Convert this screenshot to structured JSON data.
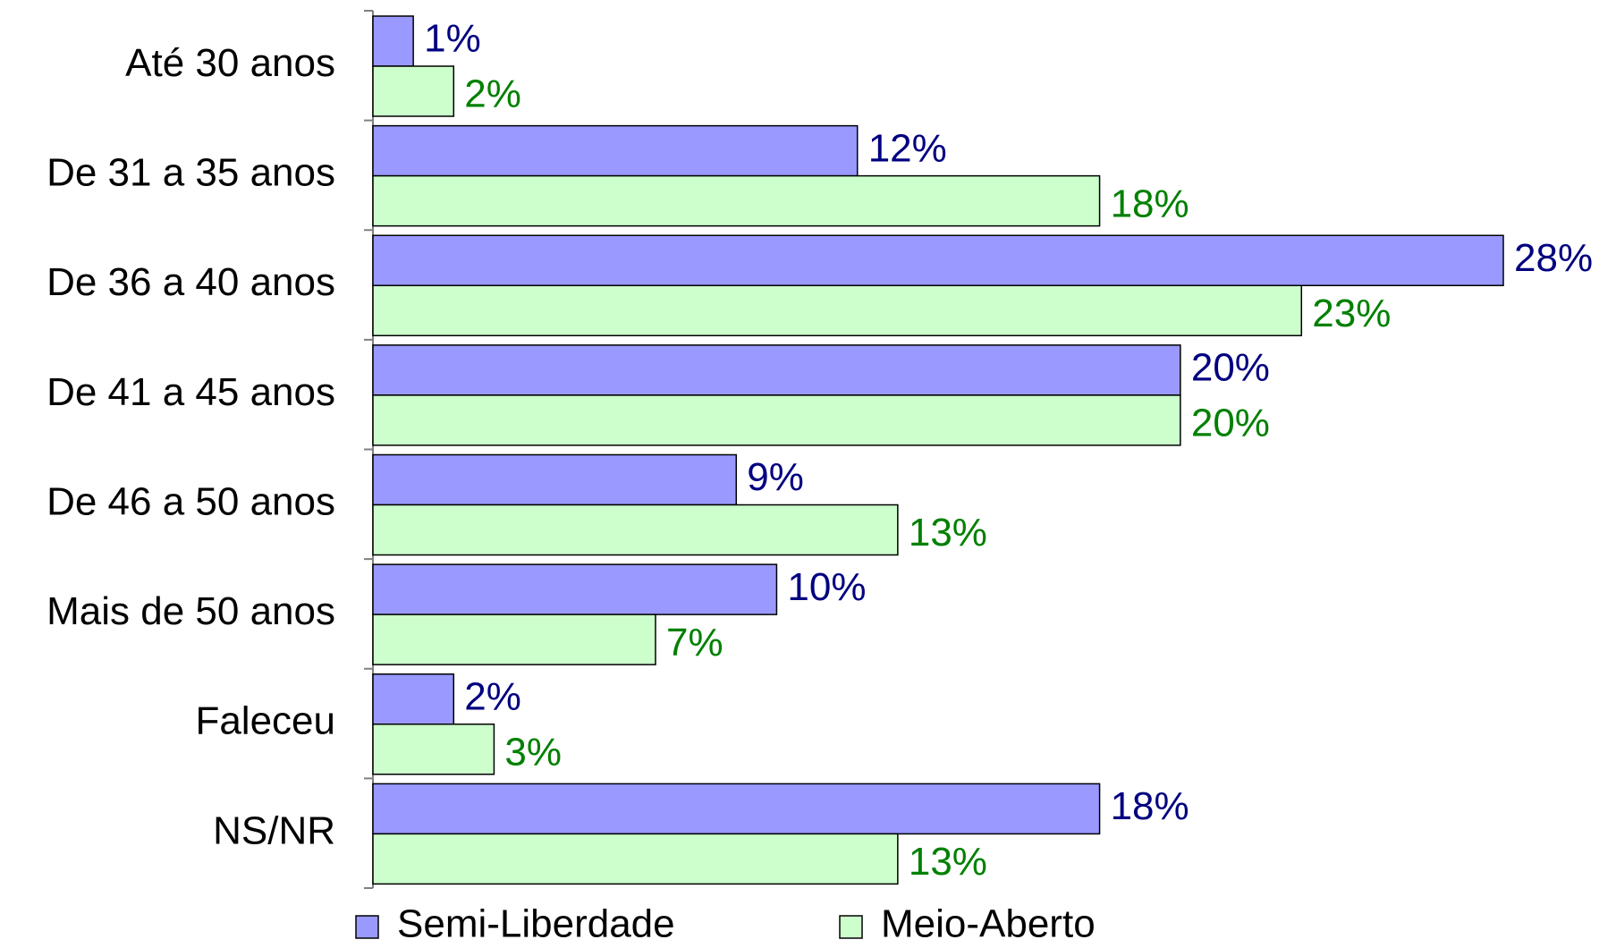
{
  "chart_data": {
    "type": "bar",
    "orientation": "horizontal",
    "categories": [
      "Até 30 anos",
      "De 31 a 35 anos",
      "De 36 a 40 anos",
      "De 41 a 45 anos",
      "De 46 a 50 anos",
      "Mais de 50 anos",
      "Faleceu",
      "NS/NR"
    ],
    "series": [
      {
        "name": "Semi-Liberdade",
        "color": "#9999ff",
        "label_color": "#000080",
        "values": [
          1,
          12,
          28,
          20,
          9,
          10,
          2,
          18
        ],
        "value_labels": [
          "1%",
          "12%",
          "28%",
          "20%",
          "9%",
          "10%",
          "2%",
          "18%"
        ]
      },
      {
        "name": "Meio-Aberto",
        "color": "#ccffcc",
        "label_color": "#008000",
        "values": [
          2,
          18,
          23,
          20,
          13,
          7,
          3,
          13
        ],
        "value_labels": [
          "2%",
          "18%",
          "23%",
          "20%",
          "13%",
          "7%",
          "3%",
          "13%"
        ]
      }
    ],
    "legend": "bottom"
  }
}
